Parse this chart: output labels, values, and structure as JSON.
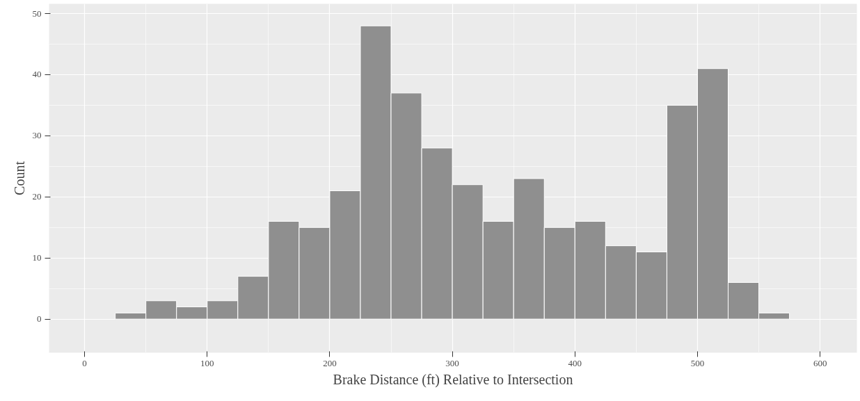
{
  "chart_data": {
    "type": "histogram",
    "xlabel": "Brake Distance (ft) Relative to Intersection",
    "ylabel": "Count",
    "bins": [
      25,
      50,
      75,
      100,
      125,
      150,
      175,
      200,
      225,
      250,
      275,
      300,
      325,
      350,
      375,
      400,
      425,
      450,
      475,
      500,
      525,
      550,
      575
    ],
    "values": [
      1,
      3,
      2,
      3,
      7,
      16,
      15,
      21,
      48,
      37,
      28,
      22,
      16,
      23,
      15,
      16,
      12,
      11,
      35,
      41,
      6,
      1
    ],
    "color": "#8f8f8f",
    "xlim": [
      -29,
      630
    ],
    "ylim": [
      -5.5,
      51.6
    ],
    "xticks": [
      0,
      100,
      200,
      300,
      400,
      500,
      600
    ],
    "yticks": [
      0,
      10,
      20,
      30,
      40,
      50
    ],
    "grid": true
  }
}
